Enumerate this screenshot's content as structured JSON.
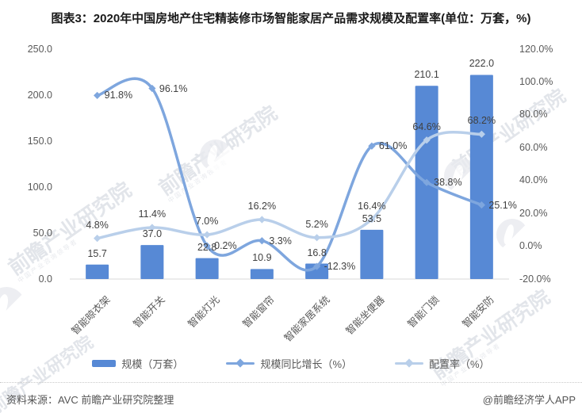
{
  "title": "图表3：2020年中国房地产住宅精装修市场智能家居产品需求规模及配置率(单位：万套，%)",
  "chart_data": {
    "type": "bar",
    "subtype": "bar-line-combo-dual-axis",
    "categories": [
      "智能晾衣架",
      "智能开关",
      "智能灯光",
      "智能窗帘",
      "智能家居系统",
      "智能坐便器",
      "智能门锁",
      "智能安防"
    ],
    "series": [
      {
        "name": "规模（万套）",
        "type": "bar",
        "axis": "left",
        "values": [
          15.7,
          37.0,
          22.8,
          10.9,
          16.8,
          53.5,
          210.1,
          222.0
        ]
      },
      {
        "name": "规模同比增长（%）",
        "type": "line",
        "axis": "right",
        "values": [
          91.8,
          96.1,
          0.2,
          3.3,
          -12.3,
          61.0,
          38.8,
          25.1
        ]
      },
      {
        "name": "配置率（%）",
        "type": "line",
        "axis": "right",
        "values": [
          4.8,
          11.4,
          7.0,
          16.2,
          5.2,
          16.4,
          64.6,
          68.2
        ]
      }
    ],
    "left_axis": {
      "min": 0,
      "max": 250,
      "tick_labels": [
        "250.0",
        "200.0",
        "150.0",
        "100.0",
        "50.0",
        "0.0"
      ]
    },
    "right_axis": {
      "min": -20,
      "max": 120,
      "tick_labels": [
        "120.0%",
        "100.0%",
        "80.0%",
        "60.0%",
        "40.0%",
        "20.0%",
        "0.0%",
        "-20.0%"
      ]
    },
    "grid": false,
    "legend_position": "bottom",
    "data_labels": true
  },
  "colors": {
    "bar": "#5789D5",
    "growth_line": "#7EA6DE",
    "config_line": "#B9CFEA",
    "axis_line": "#D9D9D9",
    "tick_text": "#595959",
    "label_text": "#404040"
  },
  "watermark": {
    "text": "前瞻产业研究院",
    "subtext": "中国产业咨询领导者"
  },
  "footer": {
    "source": "资料来源：AVC 前瞻产业研究院整理",
    "brand": "@前瞻经济学人APP"
  }
}
